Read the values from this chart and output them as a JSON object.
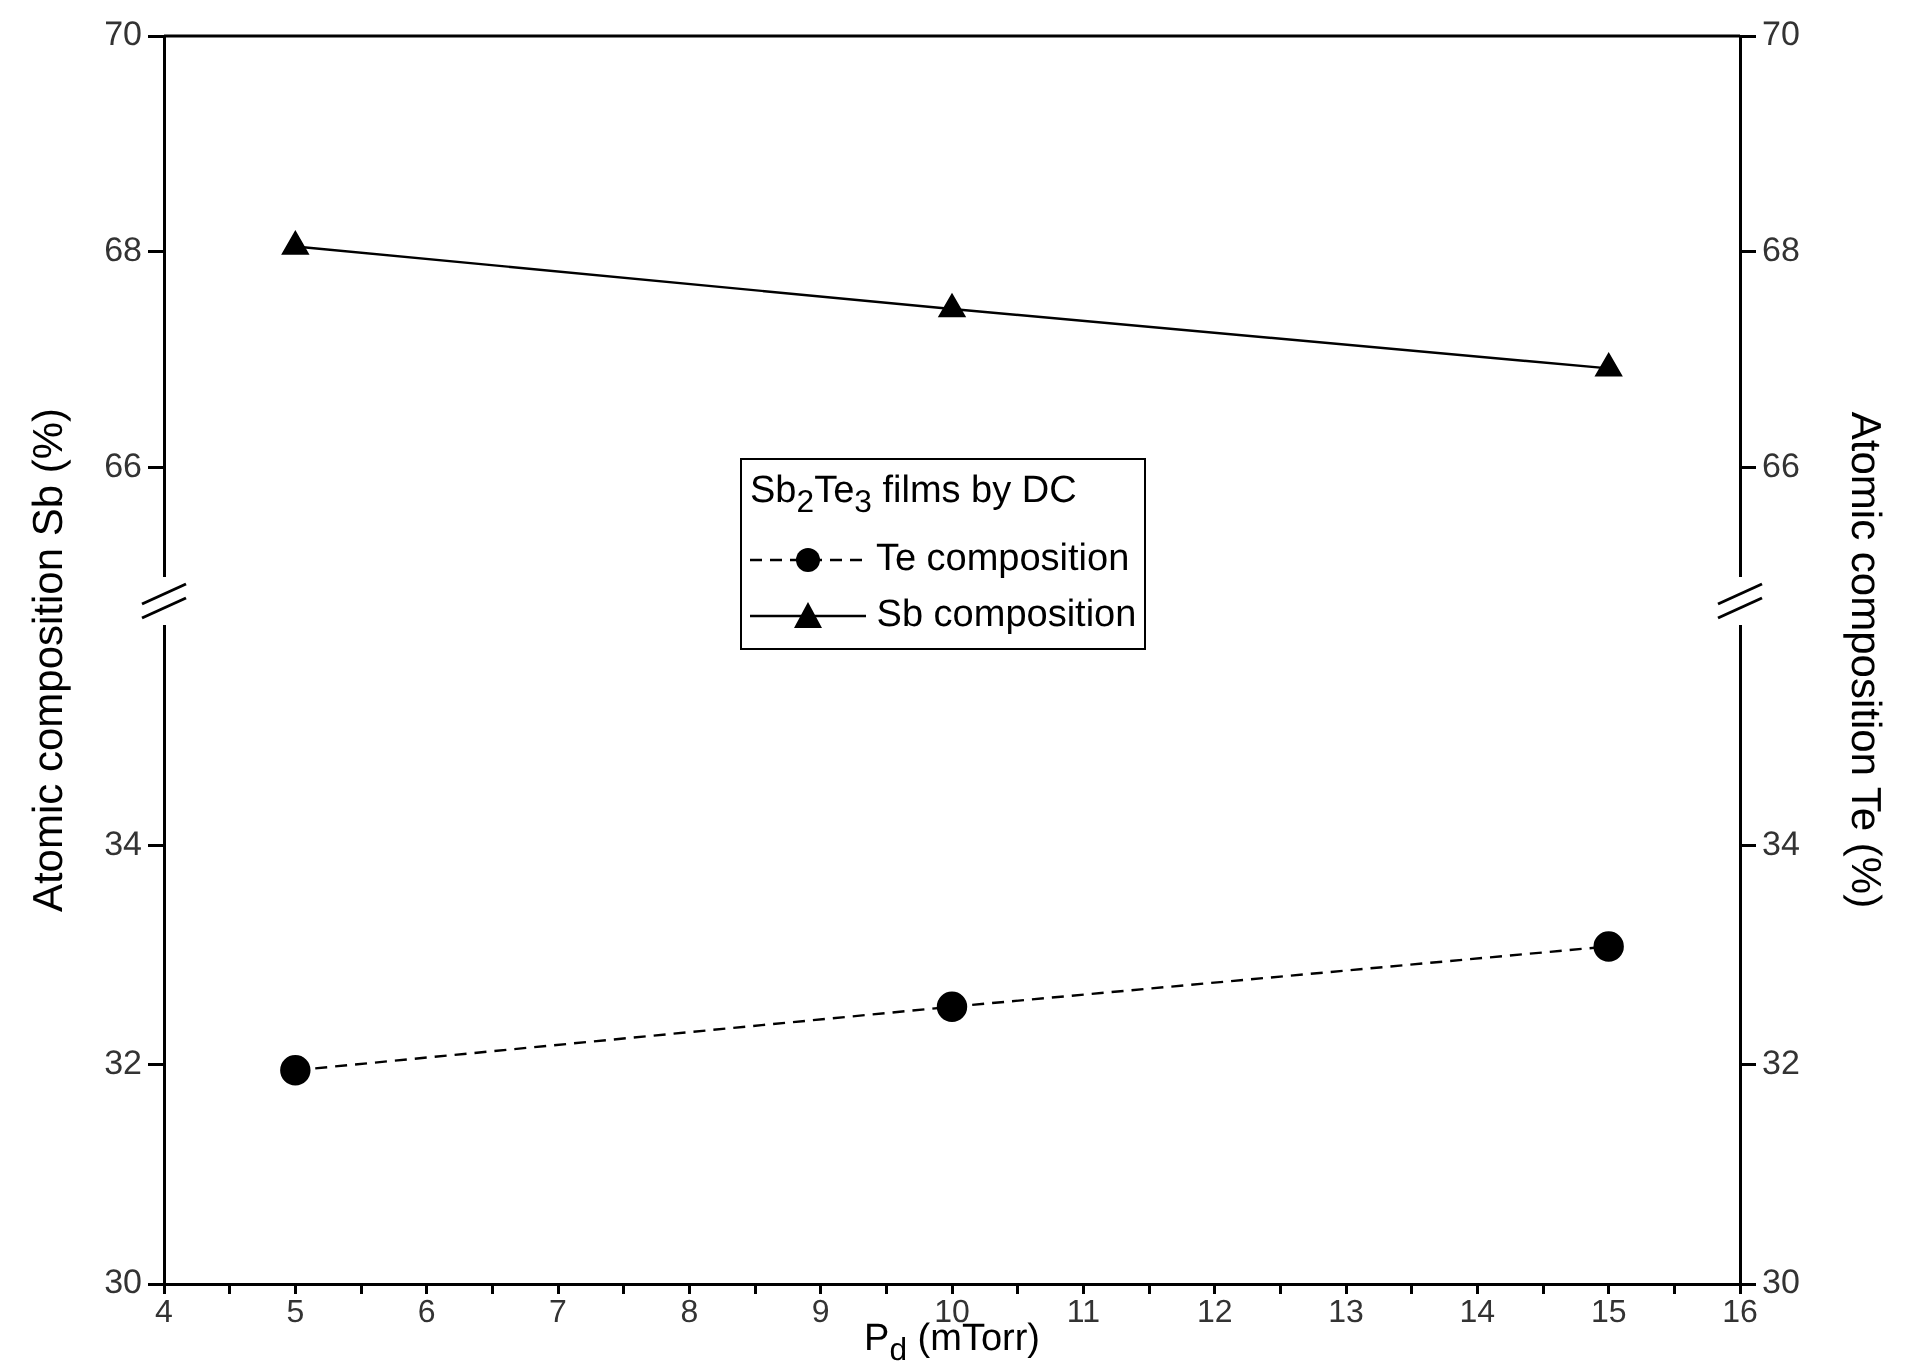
{
  "chart_data": [
    {
      "type": "line",
      "ylabel": "Atomic composition Sb (%)",
      "legend_title": "Sb$_{2}$Te$_{3}$ films by DC",
      "legend": "right",
      "tick_labels": "y",
      "x": [
        5,
        10,
        15
      ],
      "series": [
        {
          "name": "Sb composition",
          "color": "#000000",
          "values": [
            68.05,
            67.47,
            66.92
          ],
          "marker": "triangle",
          "line_style": "solid",
          "axis": "y"
        }
      ],
      "xlim": [
        4,
        16
      ],
      "xticks": [
        4,
        5,
        6,
        7,
        8,
        9,
        10,
        11,
        12,
        13,
        14,
        15,
        16
      ],
      "ylim": [
        65,
        70
      ],
      "yticks": [
        66,
        68,
        70
      ],
      "y2lim": [
        65,
        70
      ],
      "y2ticks": [
        66,
        68,
        70
      ]
    },
    {
      "type": "line",
      "xlabel": "P$_{d}$ (mTorr)",
      "y2label": "Atomic composition Te (%)",
      "legend": "right",
      "x": [
        5,
        10,
        15
      ],
      "series": [
        {
          "name": "Te composition",
          "color": "#000000",
          "values": [
            31.95,
            32.53,
            33.08
          ],
          "marker": "circle",
          "line_style": "dashed",
          "axis": "y"
        }
      ],
      "xlim": [
        4,
        16
      ],
      "xticks": [
        4,
        {
          "value": 4.5,
          "label": null
        },
        5,
        {
          "value": 5.5,
          "label": null
        },
        6,
        {
          "value": 6.5,
          "label": null
        },
        7,
        {
          "value": 7.5,
          "label": null
        },
        8,
        {
          "value": 8.5,
          "label": null
        },
        9,
        {
          "value": 9.5,
          "label": null
        },
        10,
        {
          "value": 10.5,
          "label": null
        },
        11,
        {
          "value": 11.5,
          "label": null
        },
        12,
        {
          "value": 12.5,
          "label": null
        },
        13,
        {
          "value": 13.5,
          "label": null
        },
        14,
        {
          "value": 14.5,
          "label": null
        },
        15,
        {
          "value": 15.5,
          "label": null
        },
        16
      ],
      "ylim": [
        30,
        36
      ],
      "yticks": [
        30,
        32,
        34
      ],
      "y2lim": [
        30,
        36
      ],
      "y2ticks": [
        30,
        32,
        34
      ]
    }
  ]
}
